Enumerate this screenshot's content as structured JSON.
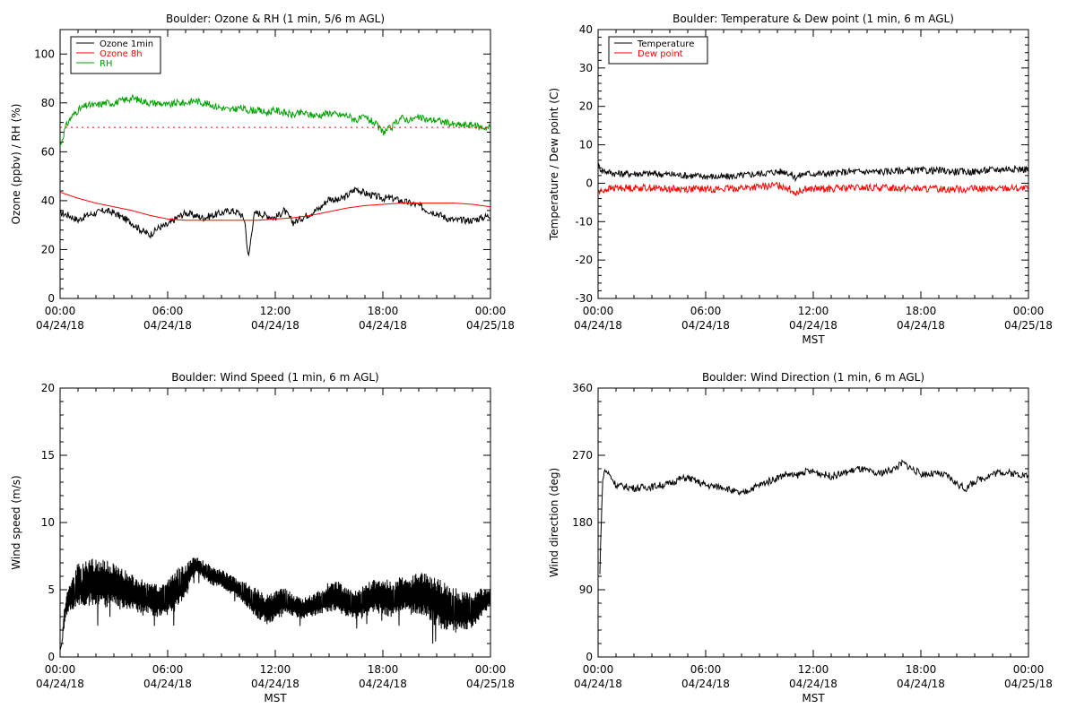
{
  "chart_data": [
    {
      "type": "line",
      "title": "Boulder: Ozone & RH (1 min, 5/6 m AGL)",
      "xlabel": "",
      "ylabel": "Ozone (ppbv) / RH (%)",
      "ylim": [
        0,
        110
      ],
      "yticks": [
        0,
        20,
        40,
        60,
        80,
        100
      ],
      "xlim": [
        0,
        24
      ],
      "xtick_labels": [
        [
          "00:00",
          "04/24/18"
        ],
        [
          "06:00",
          "04/24/18"
        ],
        [
          "12:00",
          "04/24/18"
        ],
        [
          "18:00",
          "04/24/18"
        ],
        [
          "00:00",
          "04/25/18"
        ]
      ],
      "legend_position": "top-left",
      "series": [
        {
          "name": "Ozone 1min",
          "color": "#000000",
          "x": [
            0,
            0.5,
            1,
            1.5,
            2,
            2.5,
            3,
            3.5,
            4,
            4.5,
            5,
            5.5,
            6,
            6.5,
            7,
            7.5,
            8,
            8.5,
            9,
            9.5,
            10,
            10.3,
            10.5,
            10.8,
            11,
            11.5,
            12,
            12.5,
            13,
            13.5,
            14,
            14.5,
            15,
            15.5,
            16,
            16.5,
            17,
            17.5,
            18,
            18.5,
            19,
            19.5,
            20,
            20.5,
            21,
            21.5,
            22,
            22.5,
            23,
            23.5,
            24
          ],
          "y": [
            35,
            34,
            32,
            34,
            35,
            36,
            35,
            33,
            31,
            28,
            26,
            29,
            30,
            33,
            35,
            34,
            33,
            34,
            35,
            36,
            35,
            32,
            16,
            34,
            35,
            34,
            33,
            36,
            31,
            33,
            35,
            37,
            41,
            40,
            42,
            45,
            43,
            42,
            41,
            41,
            40,
            39,
            38,
            36,
            35,
            33,
            32,
            32,
            32,
            33,
            34
          ]
        },
        {
          "name": "Ozone 8h",
          "color": "#ff0000",
          "x": [
            0,
            1,
            2,
            3,
            4,
            5,
            6,
            7,
            8,
            9,
            10,
            11,
            12,
            13,
            14,
            15,
            16,
            17,
            18,
            19,
            20,
            21,
            22,
            23,
            24
          ],
          "y": [
            43.5,
            41,
            39,
            37.5,
            36,
            34,
            32.5,
            32,
            32,
            32,
            32,
            32,
            32.5,
            33,
            34,
            35.5,
            37,
            38,
            38.5,
            39,
            39,
            39,
            39,
            38.5,
            37.5
          ]
        },
        {
          "name": "RH",
          "color": "#00a000",
          "x": [
            0,
            0.3,
            0.6,
            1,
            1.5,
            2,
            2.5,
            3,
            3.5,
            4,
            4.5,
            5,
            5.5,
            6,
            6.5,
            7,
            7.5,
            8,
            8.5,
            9,
            9.5,
            10,
            10.5,
            11,
            11.5,
            12,
            12.5,
            13,
            13.5,
            14,
            14.5,
            15,
            15.5,
            16,
            16.5,
            17,
            17.5,
            18,
            18.5,
            19,
            19.5,
            20,
            20.5,
            21,
            21.5,
            22,
            22.5,
            23,
            23.5,
            24
          ],
          "y": [
            62,
            70,
            74,
            77,
            79,
            79,
            80,
            80,
            81,
            82,
            81,
            80,
            80,
            79,
            80,
            80,
            81,
            80,
            79,
            78,
            77,
            78,
            77,
            77,
            76,
            77,
            76,
            75,
            76,
            75,
            75,
            76,
            75,
            75,
            73,
            74,
            72,
            68,
            70,
            74,
            73,
            74,
            73,
            73,
            72,
            71,
            71,
            71,
            70,
            70
          ]
        },
        {
          "name": "",
          "color": "#ff0000",
          "dotted": true,
          "x": [
            0,
            24
          ],
          "y": [
            70,
            70
          ]
        }
      ]
    },
    {
      "type": "line",
      "title": "Boulder: Temperature & Dew point (1 min, 6 m AGL)",
      "xlabel": "MST",
      "ylabel": "Temperature / Dew point (C)",
      "ylim": [
        -30,
        40
      ],
      "yticks": [
        -30,
        -20,
        -10,
        0,
        10,
        20,
        30,
        40
      ],
      "xlim": [
        0,
        24
      ],
      "xtick_labels": [
        [
          "00:00",
          "04/24/18"
        ],
        [
          "06:00",
          "04/24/18"
        ],
        [
          "12:00",
          "04/24/18"
        ],
        [
          "18:00",
          "04/24/18"
        ],
        [
          "00:00",
          "04/25/18"
        ]
      ],
      "legend_position": "top-left",
      "series": [
        {
          "name": "Temperature",
          "color": "#000000",
          "x": [
            0,
            0.2,
            0.5,
            1,
            2,
            3,
            4,
            5,
            6,
            7,
            8,
            9,
            10,
            10.5,
            11,
            11.5,
            12,
            13,
            14,
            15,
            16,
            17,
            18,
            19,
            20,
            21,
            22,
            23,
            24
          ],
          "y": [
            4.5,
            3.5,
            3,
            2.5,
            2.5,
            2.5,
            2.3,
            2,
            1.8,
            1.6,
            2,
            2.5,
            3,
            3,
            1.5,
            2.5,
            2.5,
            2.5,
            3,
            3,
            3,
            3.3,
            3.3,
            3.3,
            3,
            3,
            3.5,
            3.8,
            3.6
          ]
        },
        {
          "name": "Dew point",
          "color": "#ff0000",
          "x": [
            0,
            0.2,
            0.5,
            1,
            2,
            3,
            4,
            5,
            6,
            7,
            8,
            9,
            10,
            10.5,
            11,
            11.5,
            12,
            13,
            14,
            15,
            16,
            17,
            18,
            19,
            20,
            21,
            22,
            23,
            24
          ],
          "y": [
            -2.5,
            -2,
            -1.5,
            -1.2,
            -1.2,
            -1.2,
            -1.5,
            -1.5,
            -1.5,
            -1.5,
            -1.2,
            -1,
            -0.5,
            -1,
            -2.5,
            -1.5,
            -1.5,
            -1.5,
            -1.2,
            -1.2,
            -1.2,
            -1.2,
            -1.5,
            -1.5,
            -1.5,
            -1.5,
            -1.5,
            -1.2,
            -1.5
          ]
        }
      ]
    },
    {
      "type": "line",
      "title": "Boulder: Wind Speed (1 min, 6 m AGL)",
      "xlabel": "MST",
      "ylabel": "Wind speed (m/s)",
      "ylim": [
        0,
        20
      ],
      "yticks": [
        0,
        5,
        10,
        15,
        20
      ],
      "xlim": [
        0,
        24
      ],
      "xtick_labels": [
        [
          "00:00",
          "04/24/18"
        ],
        [
          "06:00",
          "04/24/18"
        ],
        [
          "12:00",
          "04/24/18"
        ],
        [
          "18:00",
          "04/24/18"
        ],
        [
          "00:00",
          "04/25/18"
        ]
      ],
      "series": [
        {
          "name": "",
          "color": "#000000",
          "x": [
            0,
            0.1,
            0.2,
            0.3,
            0.5,
            0.8,
            1,
            1.5,
            2,
            2.5,
            3,
            3.5,
            4,
            4.5,
            5,
            5.5,
            6,
            6.5,
            7,
            7.3,
            7.6,
            8,
            8.5,
            9,
            9.5,
            10,
            10.5,
            11,
            11.5,
            12,
            12.5,
            13,
            13.5,
            14,
            14.5,
            15,
            15.5,
            16,
            16.5,
            17,
            17.5,
            18,
            18.5,
            19,
            19.5,
            20,
            20.5,
            21,
            21.5,
            22,
            22.5,
            23,
            23.5,
            24
          ],
          "y": [
            0.5,
            1,
            2.5,
            3.5,
            4.5,
            4.8,
            5.5,
            5.5,
            5.6,
            5.5,
            5.3,
            5,
            4.8,
            4.5,
            4.3,
            4.2,
            4.5,
            5,
            5.6,
            6.5,
            6.8,
            6.5,
            6,
            5.8,
            5.4,
            5,
            4.5,
            4,
            3.5,
            3.8,
            4.2,
            3.8,
            3.6,
            3.8,
            4,
            4.5,
            4.5,
            4,
            3.8,
            4.2,
            4.5,
            4.6,
            4.2,
            4.8,
            4.5,
            4.8,
            4.5,
            4,
            3.8,
            3.5,
            3.3,
            3.5,
            4,
            4.5
          ],
          "noise": [
            0,
            0,
            0.5,
            0.5,
            0.8,
            1,
            1.2,
            1.2,
            1.3,
            1.3,
            1.2,
            1.1,
            1,
            1,
            0.9,
            0.9,
            1,
            1.1,
            1,
            0.6,
            0.5,
            0.5,
            0.5,
            0.5,
            0.5,
            0.5,
            0.7,
            0.8,
            0.8,
            0.8,
            0.8,
            0.6,
            0.6,
            0.6,
            0.7,
            0.8,
            0.8,
            0.8,
            0.8,
            0.9,
            0.9,
            1,
            1,
            1,
            1,
            1.2,
            1.2,
            1.3,
            1.3,
            1.2,
            1.1,
            1,
            0.8,
            0.5
          ]
        }
      ]
    },
    {
      "type": "line",
      "title": "Boulder: Wind Direction (1 min, 6 m AGL)",
      "xlabel": "MST",
      "ylabel": "Wind direction (deg)",
      "ylim": [
        0,
        360
      ],
      "yticks": [
        0,
        90,
        180,
        270,
        360
      ],
      "xlim": [
        0,
        24
      ],
      "xtick_labels": [
        [
          "00:00",
          "04/24/18"
        ],
        [
          "06:00",
          "04/24/18"
        ],
        [
          "12:00",
          "04/24/18"
        ],
        [
          "18:00",
          "04/24/18"
        ],
        [
          "00:00",
          "04/25/18"
        ]
      ],
      "series": [
        {
          "name": "",
          "color": "#000000",
          "x": [
            0.1,
            0.15,
            0.2,
            0.25,
            0.3,
            0.4,
            0.6,
            0.8,
            1,
            1.5,
            2,
            2.5,
            3,
            3.5,
            4,
            4.5,
            5,
            5.5,
            6,
            6.5,
            7,
            7.5,
            8,
            8.5,
            9,
            9.5,
            10,
            10.5,
            11,
            11.5,
            12,
            12.5,
            13,
            13.5,
            14,
            14.5,
            15,
            15.5,
            16,
            16.5,
            17,
            17.5,
            18,
            18.5,
            19,
            19.5,
            20,
            20.5,
            21,
            21.5,
            22,
            22.5,
            23,
            23.5,
            24
          ],
          "y": [
            110,
            160,
            200,
            230,
            245,
            250,
            245,
            238,
            230,
            228,
            226,
            227,
            228,
            230,
            232,
            238,
            240,
            235,
            230,
            228,
            228,
            222,
            218,
            225,
            230,
            235,
            240,
            245,
            242,
            248,
            248,
            245,
            242,
            245,
            248,
            252,
            249,
            245,
            248,
            252,
            260,
            252,
            245,
            245,
            245,
            242,
            232,
            225,
            235,
            240,
            245,
            248,
            246,
            245,
            242
          ]
        }
      ]
    }
  ]
}
